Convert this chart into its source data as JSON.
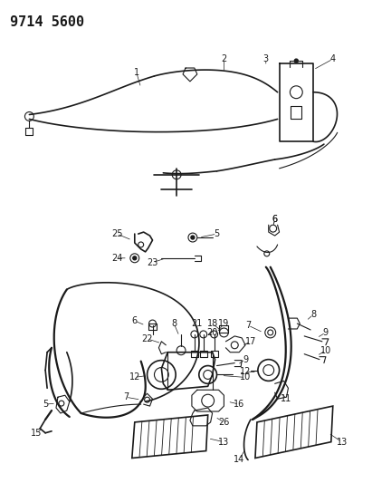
{
  "title_code": "9714 5600",
  "bg_color": "#ffffff",
  "line_color": "#1a1a1a",
  "title_fontsize": 11,
  "label_fontsize": 7,
  "fig_width": 4.11,
  "fig_height": 5.33,
  "dpi": 100
}
